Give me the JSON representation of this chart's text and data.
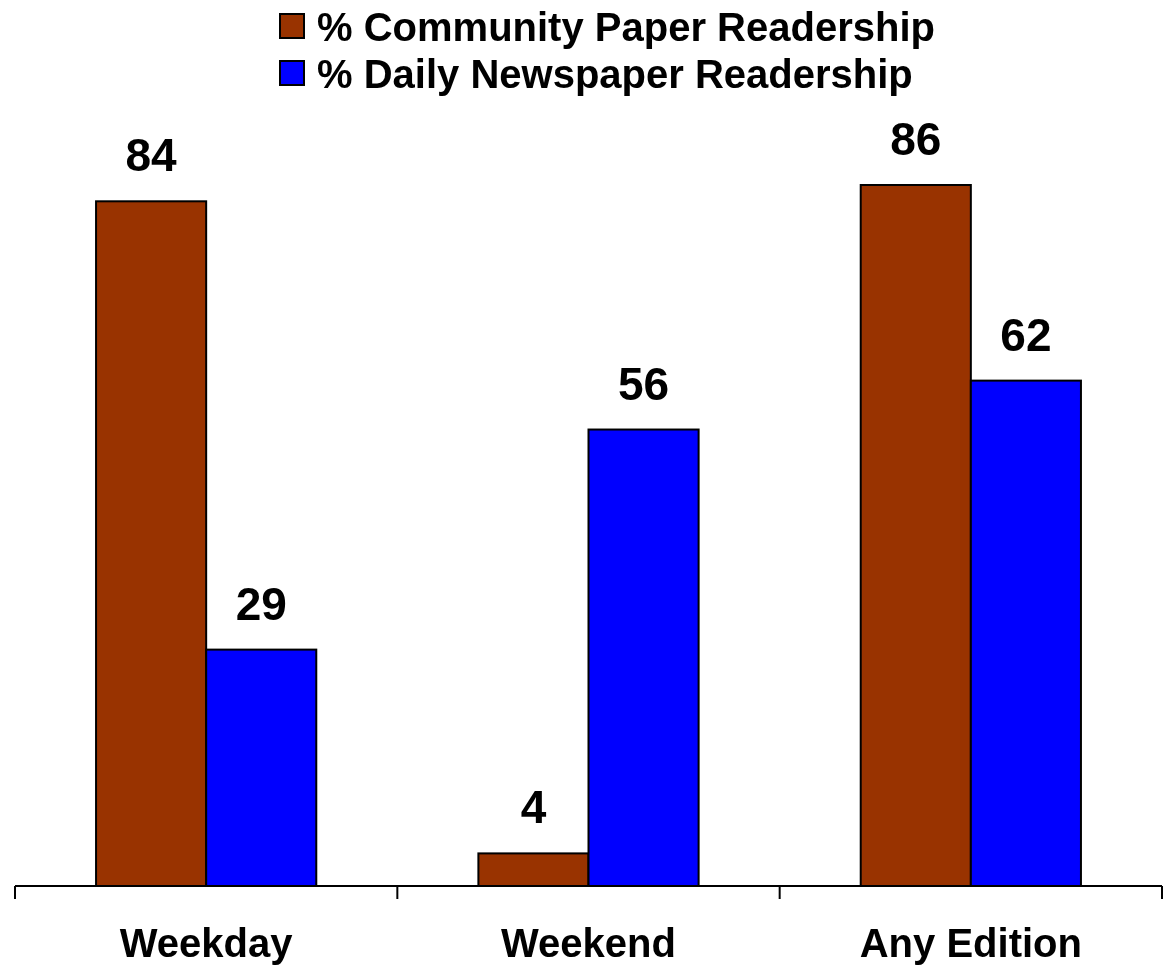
{
  "chart_data": {
    "type": "bar",
    "categories": [
      "Weekday",
      "Weekend",
      "Any Edition"
    ],
    "series": [
      {
        "name": "% Community Paper Readership",
        "color": "#993300",
        "values": [
          84,
          4,
          86
        ]
      },
      {
        "name": "% Daily Newspaper Readership",
        "color": "#0000ff",
        "values": [
          29,
          56,
          62
        ]
      }
    ],
    "data_labels": true,
    "legend": "top"
  }
}
